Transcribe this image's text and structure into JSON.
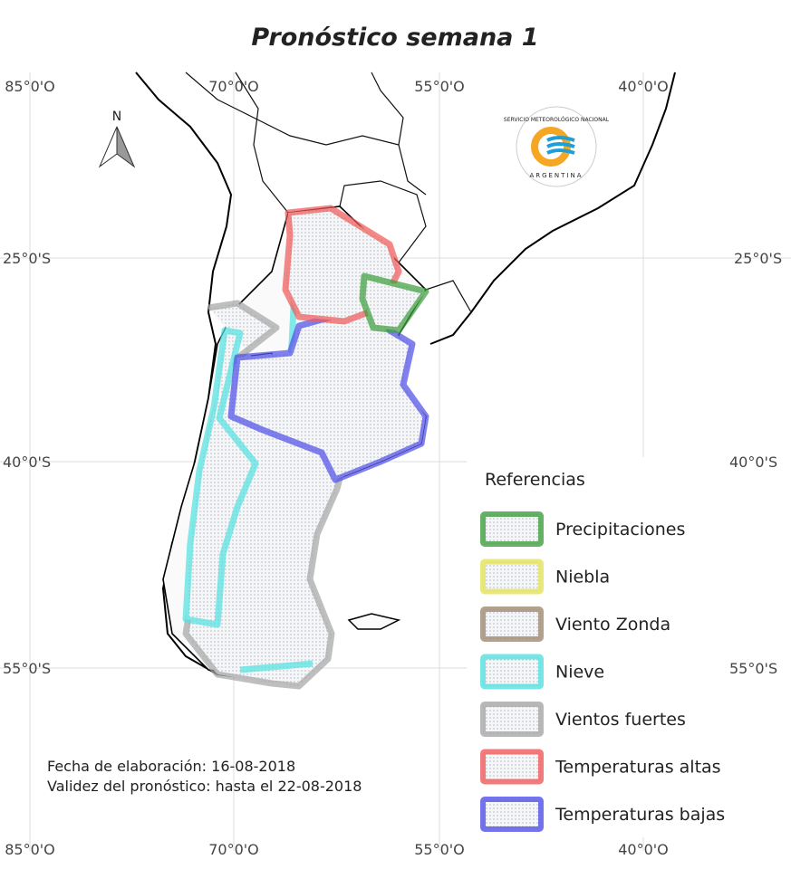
{
  "title": "Pronóstico semana 1",
  "north_arrow": "N",
  "logo": {
    "name": "SERVICIO METEOROLÓGICO NACIONAL",
    "country": "ARGENTINA"
  },
  "graticule": {
    "top": [
      "85°0'O",
      "70°0'O",
      "55°0'O",
      "40°0'O"
    ],
    "bottom": [
      "85°0'O",
      "70°0'O",
      "55°0'O",
      "40°0'O"
    ],
    "left": [
      "25°0'S",
      "40°0'S",
      "55°0'S"
    ],
    "right": [
      "25°0'S",
      "40°0'S",
      "55°0'S"
    ]
  },
  "legend": {
    "title": "Referencias",
    "items": [
      {
        "label": "Precipitaciones",
        "color": "#3f9f3f"
      },
      {
        "label": "Niebla",
        "color": "#e4e45a"
      },
      {
        "label": "Viento Zonda",
        "color": "#9e8a70"
      },
      {
        "label": "Nieve",
        "color": "#55e0e0"
      },
      {
        "label": "Vientos fuertes",
        "color": "#a6a6a6"
      },
      {
        "label": "Temperaturas altas",
        "color": "#f05a5a"
      },
      {
        "label": "Temperaturas bajas",
        "color": "#5050e8"
      }
    ]
  },
  "footer": [
    "Fecha de elaboración: 16-08-2018",
    "Validez del pronóstico: hasta el 22-08-2018"
  ]
}
